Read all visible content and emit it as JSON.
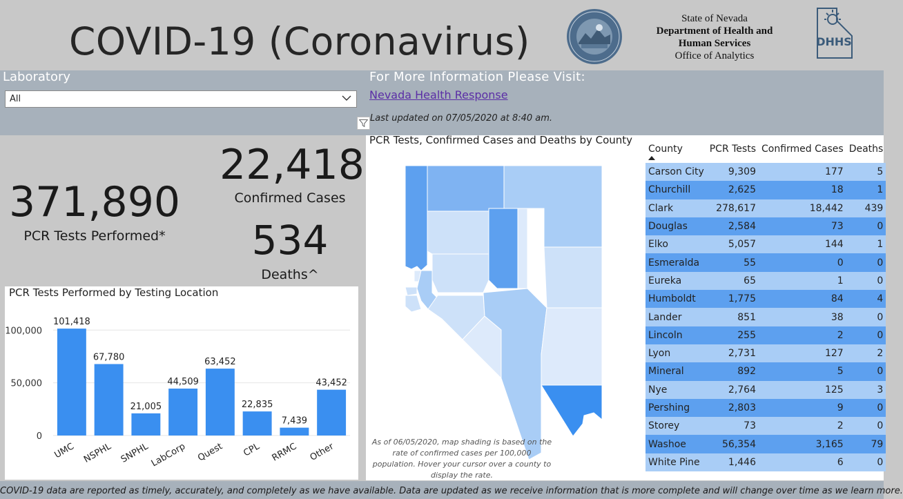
{
  "header": {
    "title": "COVID-19 (Coronavirus)",
    "agency_line1": "State of Nevada",
    "agency_line2": "Department of Health and",
    "agency_line3": "Human Services",
    "agency_line4": "Office of Analytics",
    "seal_text": "THE GREAT SEAL OF THE STATE OF NEVADA",
    "logo_text": "DHHS"
  },
  "filter": {
    "label": "Laboratory",
    "selected": "All",
    "icon": "chevron-down-icon"
  },
  "info": {
    "heading": "For More Information Please Visit:",
    "link_text": "Nevada Health Response",
    "updated": "Last updated on 07/05/2020 at 8:40 am."
  },
  "kpis": {
    "pcr_tests": "371,890",
    "pcr_tests_label": "PCR Tests Performed*",
    "confirmed_cases": "22,418",
    "confirmed_cases_label": "Confirmed Cases",
    "deaths": "534",
    "deaths_label": "Deaths^"
  },
  "chart_data": {
    "type": "bar",
    "title": "PCR Tests Performed by Testing Location",
    "categories": [
      "UMC",
      "NSPHL",
      "SNPHL",
      "LabCorp",
      "Quest",
      "CPL",
      "RRMC",
      "Other"
    ],
    "values": [
      101418,
      67780,
      21005,
      44509,
      63452,
      22835,
      7439,
      43452
    ],
    "value_labels": [
      "101,418",
      "67,780",
      "21,005",
      "44,509",
      "63,452",
      "22,835",
      "7,439",
      "43,452"
    ],
    "ylim": [
      0,
      110000
    ],
    "yticks": [
      0,
      50000,
      100000
    ],
    "ytick_labels": [
      "0",
      "50,000",
      "100,000"
    ],
    "bar_color": "#3a8ff0",
    "grid": true
  },
  "map": {
    "title": "PCR Tests, Confirmed Cases and Deaths by County",
    "note": "As of 06/05/2020, map shading is based on the rate of confirmed cases per 100,000 population. Hover your cursor over a county to display the rate."
  },
  "table": {
    "headers": [
      "County",
      "PCR Tests",
      "Confirmed Cases",
      "Deaths"
    ],
    "rows": [
      [
        "Carson City",
        "9,309",
        "177",
        "5"
      ],
      [
        "Churchill",
        "2,625",
        "18",
        "1"
      ],
      [
        "Clark",
        "278,617",
        "18,442",
        "439"
      ],
      [
        "Douglas",
        "2,584",
        "73",
        "0"
      ],
      [
        "Elko",
        "5,057",
        "144",
        "1"
      ],
      [
        "Esmeralda",
        "55",
        "0",
        "0"
      ],
      [
        "Eureka",
        "65",
        "1",
        "0"
      ],
      [
        "Humboldt",
        "1,775",
        "84",
        "4"
      ],
      [
        "Lander",
        "851",
        "38",
        "0"
      ],
      [
        "Lincoln",
        "255",
        "2",
        "0"
      ],
      [
        "Lyon",
        "2,731",
        "127",
        "2"
      ],
      [
        "Mineral",
        "892",
        "5",
        "0"
      ],
      [
        "Nye",
        "2,764",
        "125",
        "3"
      ],
      [
        "Pershing",
        "2,803",
        "9",
        "0"
      ],
      [
        "Storey",
        "73",
        "2",
        "0"
      ],
      [
        "Washoe",
        "56,354",
        "3,165",
        "79"
      ],
      [
        "White Pine",
        "1,446",
        "6",
        "0"
      ]
    ]
  },
  "footer": {
    "text": "COVID-19 data are reported as timely, accurately, and completely as we have available.  Data are updated as we receive information that is more complete and will change over time as we learn more."
  },
  "colors": {
    "header_bg": "#c8c8c8",
    "band_bg": "#a7b1bb",
    "row_light": "#a9cdf6",
    "row_dark": "#5da0ef",
    "link": "#5b2ea6"
  }
}
